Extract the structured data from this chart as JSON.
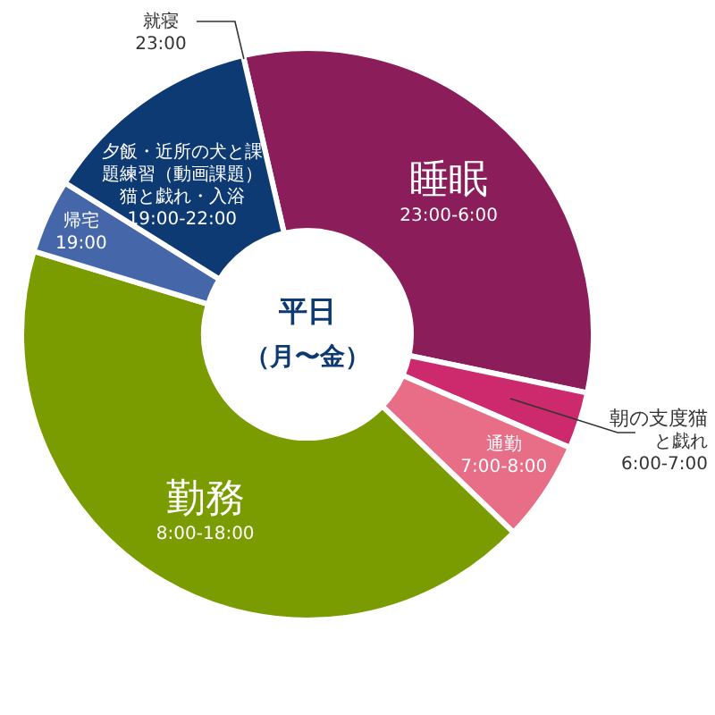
{
  "chart_data": {
    "type": "donut",
    "title": "平日",
    "subtitle": "（月〜金）",
    "categories": [
      "睡眠 23:00-6:00",
      "朝の支度猫と戯れ 6:00-7:00",
      "通勤 7:00-8:00",
      "勤務 8:00-18:00",
      "帰宅 19:00",
      "夕飯・近所の犬と課題練習（動画課題）猫と戯れ・入浴 19:00-22:00"
    ],
    "values": [
      31.9,
      3.2,
      5.7,
      42.5,
      4.2,
      12.5
    ],
    "colors": [
      "#8b1d5a",
      "#cc2a6c",
      "#e86d86",
      "#7a9c00",
      "#4566a8",
      "#0d3a73"
    ],
    "annotations": [
      "就寝 23:00"
    ]
  }
}
